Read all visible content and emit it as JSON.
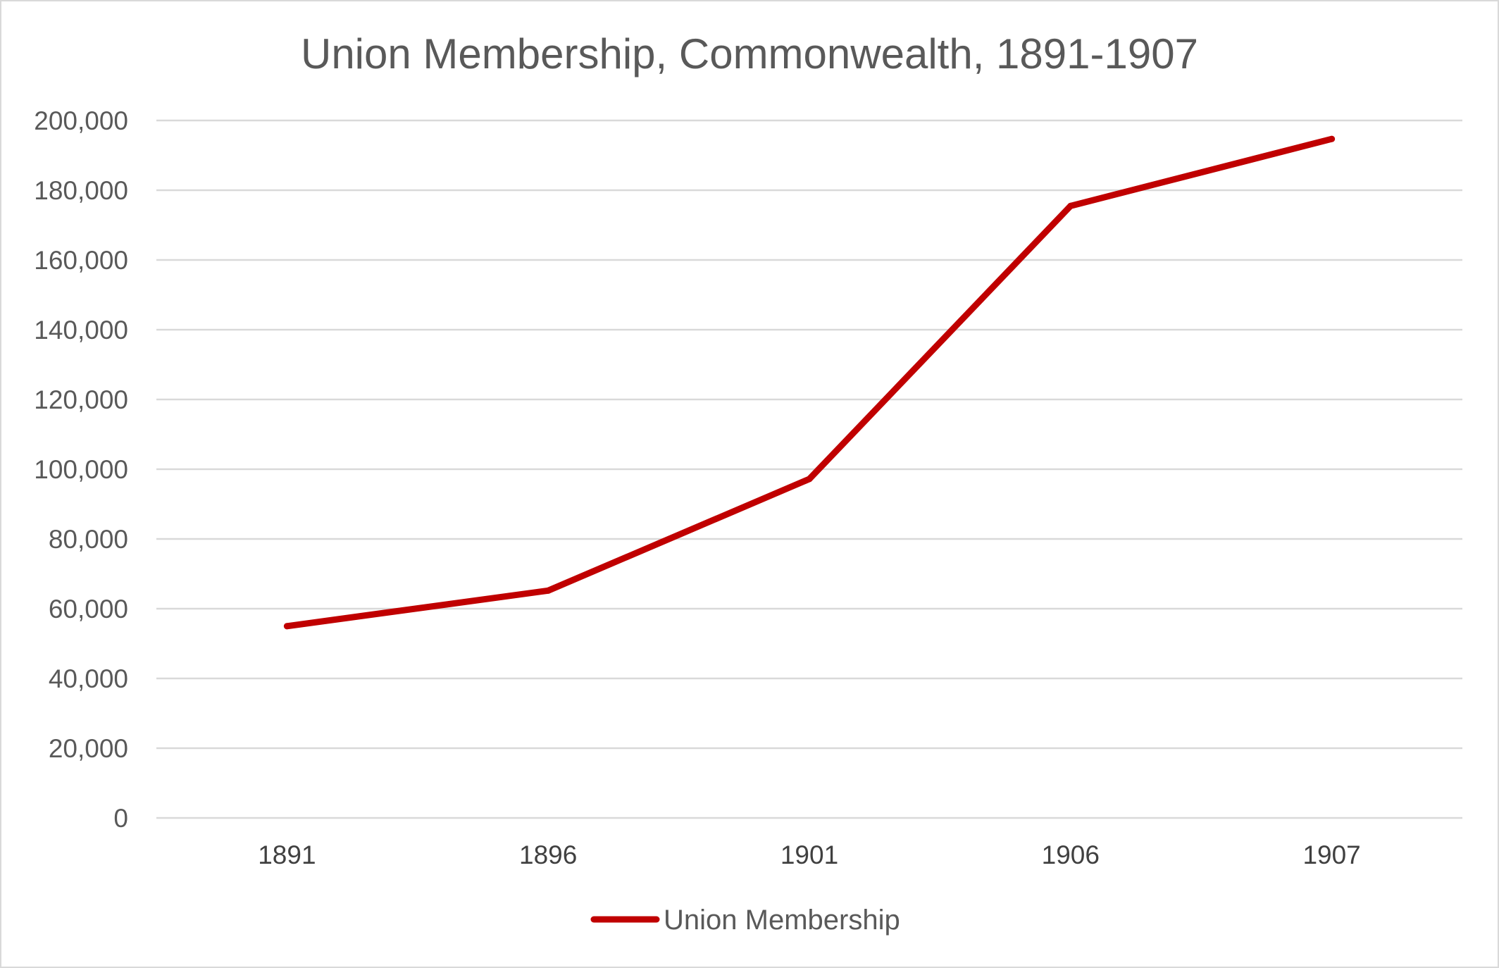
{
  "chart_data": {
    "type": "line",
    "title": "Union Membership, Commonwealth, 1891-1907",
    "xlabel": "",
    "ylabel": "",
    "categories": [
      "1891",
      "1896",
      "1901",
      "1906",
      "1907"
    ],
    "series": [
      {
        "name": "Union Membership",
        "values": [
          55000,
          65200,
          97200,
          175500,
          194700
        ],
        "color": "#c00000"
      }
    ],
    "ylim": [
      0,
      200000
    ],
    "yticks": [
      0,
      20000,
      40000,
      60000,
      80000,
      100000,
      120000,
      140000,
      160000,
      180000,
      200000
    ],
    "ytick_labels": [
      "0",
      "20,000",
      "40,000",
      "60,000",
      "80,000",
      "100,000",
      "120,000",
      "140,000",
      "160,000",
      "180,000",
      "200,000"
    ],
    "grid": true,
    "legend_position": "bottom",
    "gridline_color": "#d9d9d9"
  }
}
